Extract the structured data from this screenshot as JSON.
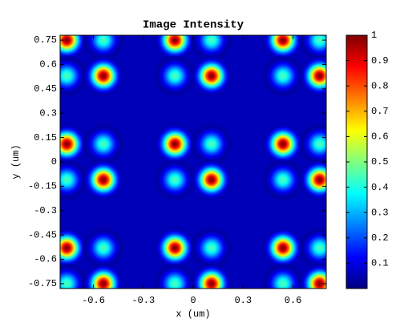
{
  "chart_data": {
    "type": "heatmap",
    "title": "Image Intensity",
    "xlabel": "x (um)",
    "ylabel": "y (um)",
    "colormap": "jet",
    "xlim": [
      -0.8,
      0.8
    ],
    "ylim": [
      -0.78,
      0.78
    ],
    "xticks": [
      -0.6,
      -0.3,
      0,
      0.3,
      0.6
    ],
    "yticks": [
      0.75,
      0.6,
      0.45,
      0.3,
      0.15,
      0,
      -0.15,
      -0.3,
      -0.45,
      -0.6,
      -0.75
    ],
    "clim": [
      0,
      1
    ],
    "cticks": [
      0.1,
      0.2,
      0.3,
      0.4,
      0.5,
      0.6,
      0.7,
      0.8,
      0.9,
      1
    ],
    "x": [
      -0.76,
      -0.54,
      -0.11,
      0.11,
      0.54,
      0.76,
      -0.76,
      -0.54,
      -0.11,
      0.11,
      0.54,
      0.76,
      -0.76,
      -0.54,
      -0.11,
      0.11,
      0.54,
      0.76,
      -0.76,
      -0.54,
      -0.11,
      0.11,
      0.54,
      0.76,
      -0.76,
      -0.54,
      -0.11,
      0.11,
      0.54,
      0.76,
      -0.76,
      -0.54,
      -0.11,
      0.11,
      0.54,
      0.76
    ],
    "y": [
      0.75,
      0.75,
      0.75,
      0.75,
      0.75,
      0.75,
      0.53,
      0.53,
      0.53,
      0.53,
      0.53,
      0.53,
      0.11,
      0.11,
      0.11,
      0.11,
      0.11,
      0.11,
      -0.11,
      -0.11,
      -0.11,
      -0.11,
      -0.11,
      -0.11,
      -0.53,
      -0.53,
      -0.53,
      -0.53,
      -0.53,
      -0.53,
      -0.75,
      -0.75,
      -0.75,
      -0.75,
      -0.75,
      -0.75
    ],
    "values": [
      1,
      0.45,
      1,
      0.45,
      1,
      0.45,
      0.45,
      1,
      0.45,
      1,
      0.45,
      1,
      1,
      0.45,
      1,
      0.45,
      1,
      0.45,
      0.45,
      1,
      0.45,
      1,
      0.45,
      1,
      1,
      0.45,
      1,
      0.45,
      1,
      0.45,
      0.45,
      1,
      0.45,
      1,
      0.45,
      1
    ]
  }
}
